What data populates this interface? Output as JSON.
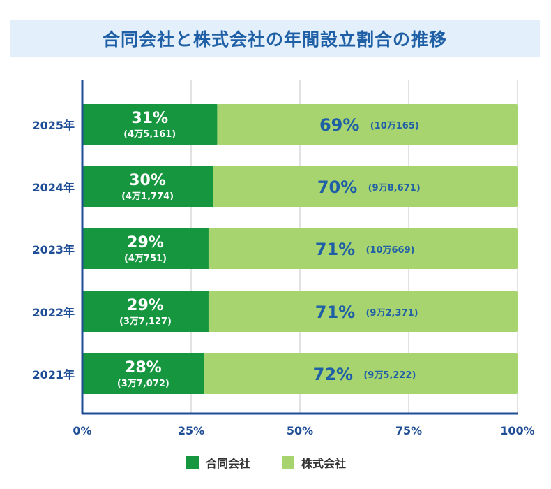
{
  "title": "合同会社と株式会社の年間設立割合の推移",
  "colors": {
    "godo": "#16963f",
    "kabushiki": "#a8d46f",
    "axis": "#1f4e96",
    "label_dark": "#1f5fa6",
    "grid": "#d8d8d8"
  },
  "legend": [
    {
      "label": "合同会社",
      "color": "#16963f"
    },
    {
      "label": "株式会社",
      "color": "#a8d46f"
    }
  ],
  "chart_data": {
    "type": "bar",
    "orientation": "horizontal",
    "stacked": true,
    "categories": [
      "2025年",
      "2024年",
      "2023年",
      "2022年",
      "2021年"
    ],
    "series": [
      {
        "name": "合同会社",
        "values": [
          31,
          30,
          29,
          29,
          28
        ],
        "labels": [
          "31%",
          "30%",
          "29%",
          "29%",
          "28%"
        ],
        "counts": [
          "(4万5,161)",
          "(4万1,774)",
          "(4万751)",
          "(3万7,127)",
          "(3万7,072)"
        ]
      },
      {
        "name": "株式会社",
        "values": [
          69,
          70,
          71,
          71,
          72
        ],
        "labels": [
          "69%",
          "70%",
          "71%",
          "71%",
          "72%"
        ],
        "counts": [
          "(10万165)",
          "(9万8,671)",
          "(10万669)",
          "(9万2,371)",
          "(9万5,222)"
        ]
      }
    ],
    "x_ticks": [
      "0%",
      "25%",
      "50%",
      "75%",
      "100%"
    ],
    "xlim": [
      0,
      100
    ],
    "grid": true,
    "legend_position": "bottom"
  }
}
